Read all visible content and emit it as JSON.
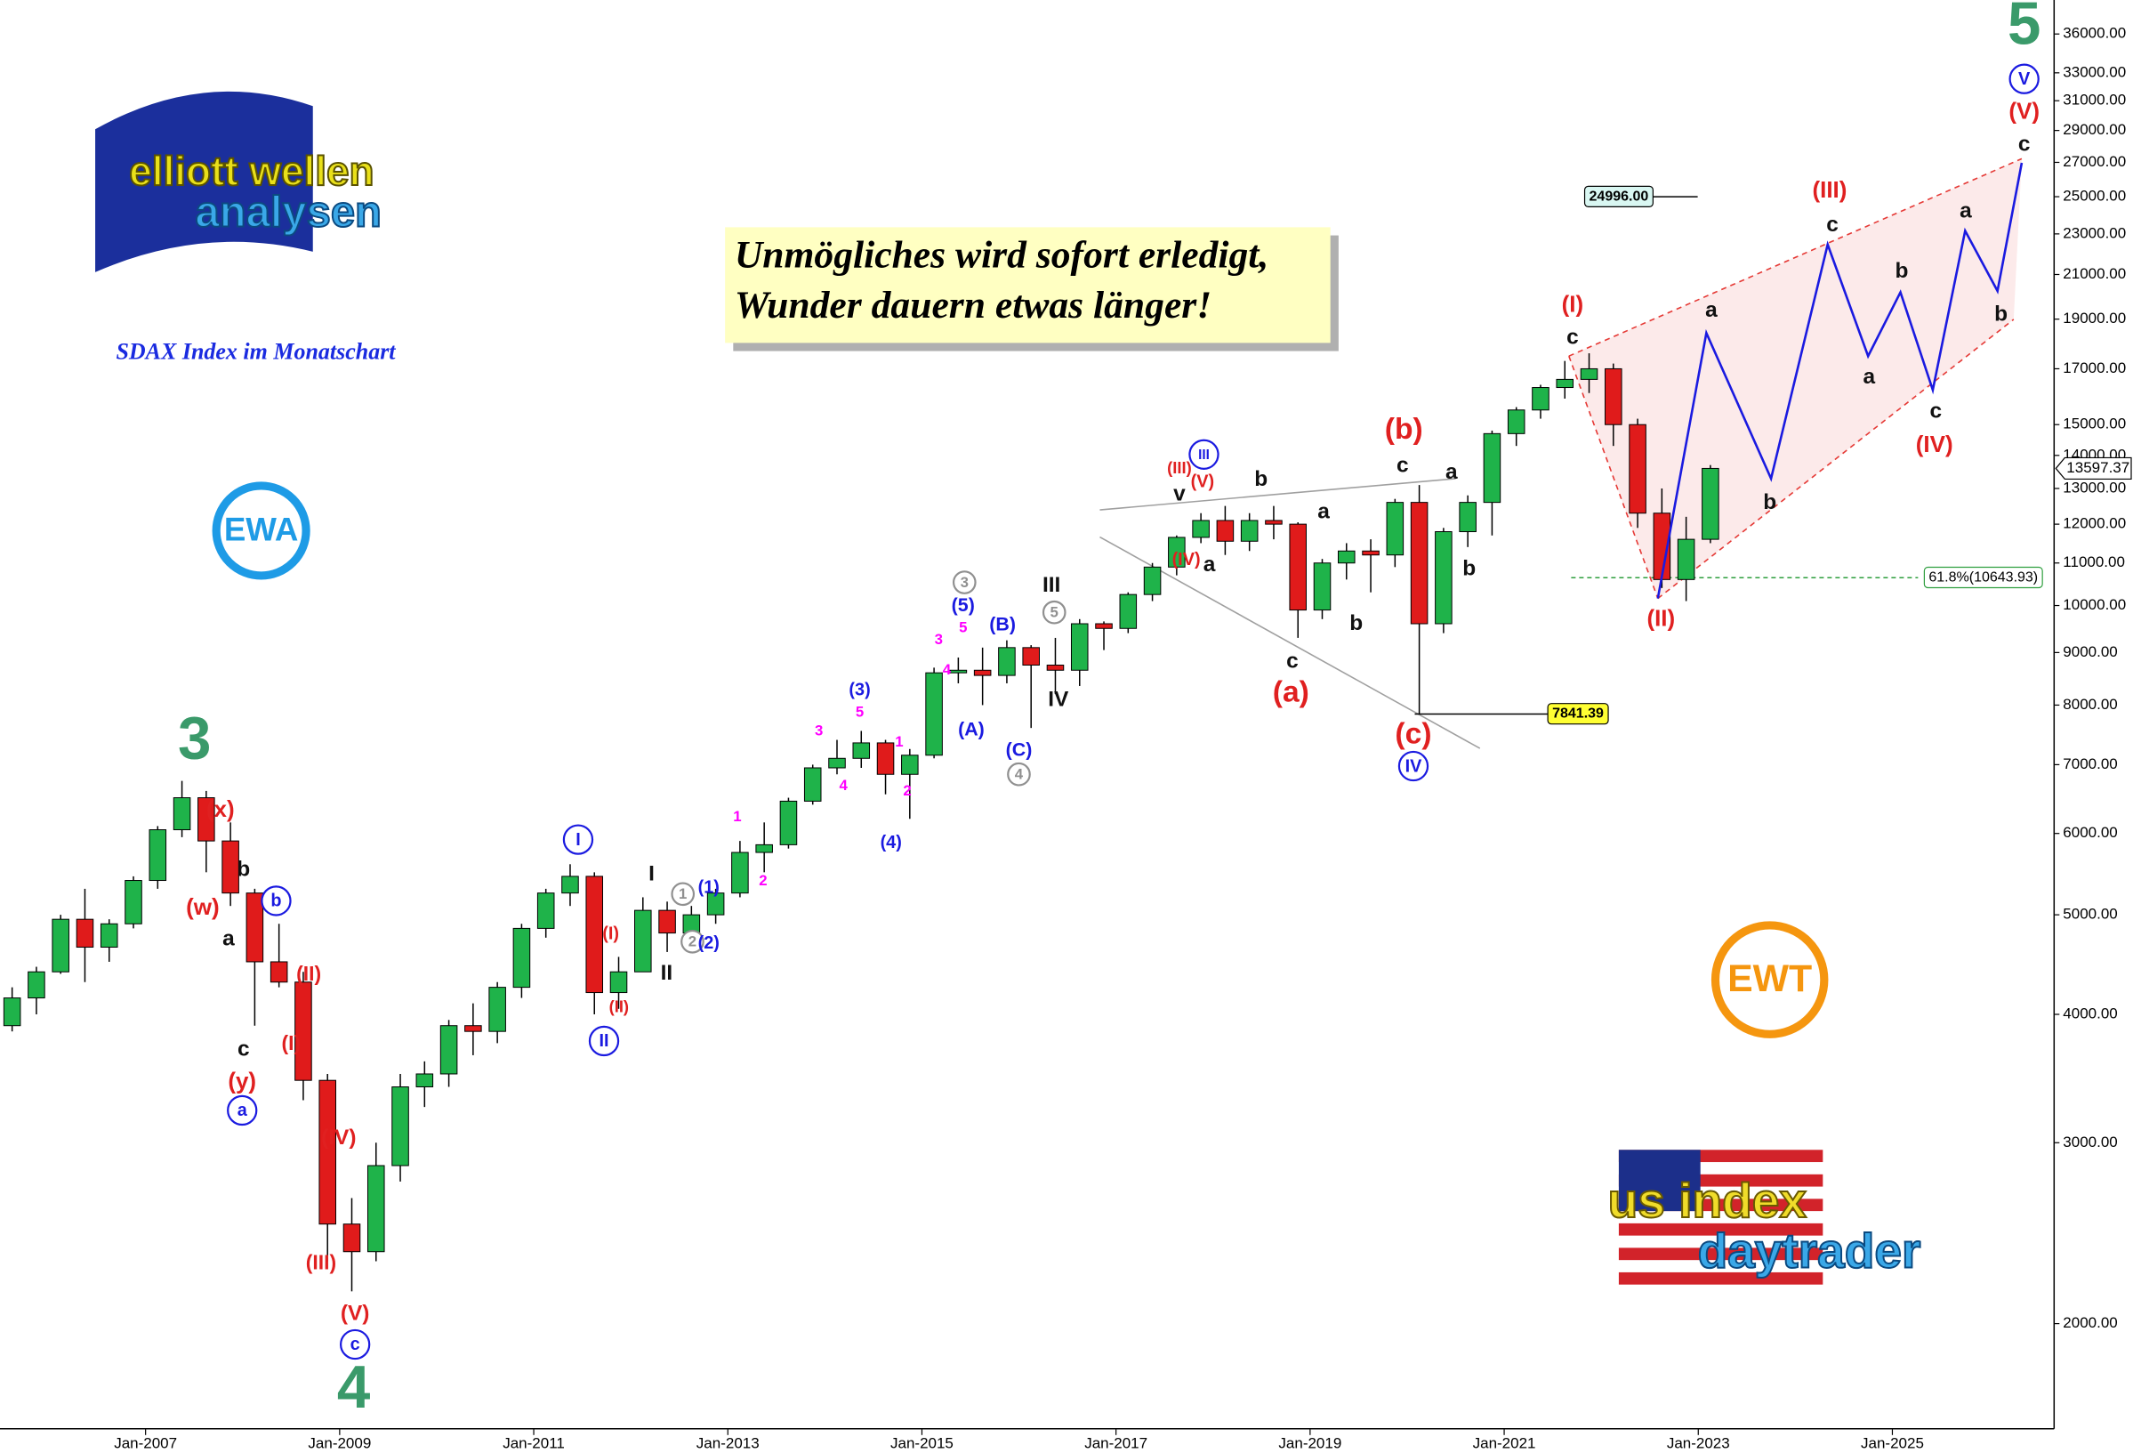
{
  "chart_data": {
    "type": "candlestick",
    "title": "SDAX Index im Monatschart",
    "headline": [
      "Unmögliches wird sofort erledigt,",
      "Wunder dauern etwas länger!"
    ],
    "log_scale": true,
    "grid": false,
    "up_color": "#1fb34a",
    "down_color": "#e01b1b",
    "xlim": [
      "2005-07",
      "2026-09"
    ],
    "xticks": [
      {
        "value": "2007-01",
        "label": "Jan-2007"
      },
      {
        "value": "2009-01",
        "label": "Jan-2009"
      },
      {
        "value": "2011-01",
        "label": "Jan-2011"
      },
      {
        "value": "2013-01",
        "label": "Jan-2013"
      },
      {
        "value": "2015-01",
        "label": "Jan-2015"
      },
      {
        "value": "2017-01",
        "label": "Jan-2017"
      },
      {
        "value": "2019-01",
        "label": "Jan-2019"
      },
      {
        "value": "2021-01",
        "label": "Jan-2021"
      },
      {
        "value": "2023-01",
        "label": "Jan-2023"
      },
      {
        "value": "2025-01",
        "label": "Jan-2025"
      }
    ],
    "ylim": [
      1580,
      38850
    ],
    "yticks": [
      {
        "value": 2000,
        "label": "2000.00"
      },
      {
        "value": 3000,
        "label": "3000.00"
      },
      {
        "value": 4000,
        "label": "4000.00"
      },
      {
        "value": 5000,
        "label": "5000.00"
      },
      {
        "value": 6000,
        "label": "6000.00"
      },
      {
        "value": 7000,
        "label": "7000.00"
      },
      {
        "value": 8000,
        "label": "8000.00"
      },
      {
        "value": 9000,
        "label": "9000.00"
      },
      {
        "value": 10000,
        "label": "10000.00"
      },
      {
        "value": 11000,
        "label": "11000.00"
      },
      {
        "value": 12000,
        "label": "12000.00"
      },
      {
        "value": 13000,
        "label": "13000.00"
      },
      {
        "value": 14000,
        "label": "14000.00"
      },
      {
        "value": 15000,
        "label": "15000.00"
      },
      {
        "value": 17000,
        "label": "17000.00"
      },
      {
        "value": 19000,
        "label": "19000.00"
      },
      {
        "value": 21000,
        "label": "21000.00"
      },
      {
        "value": 23000,
        "label": "23000.00"
      },
      {
        "value": 25000,
        "label": "25000.00"
      },
      {
        "value": 27000,
        "label": "27000.00"
      },
      {
        "value": 29000,
        "label": "29000.00"
      },
      {
        "value": 31000,
        "label": "31000.00"
      },
      {
        "value": 33000,
        "label": "33000.00"
      },
      {
        "value": 36000,
        "label": "36000.00"
      }
    ],
    "x": [
      "2005-07",
      "2005-10",
      "2006-01",
      "2006-04",
      "2006-07",
      "2006-10",
      "2007-01",
      "2007-04",
      "2007-07",
      "2007-10",
      "2008-01",
      "2008-04",
      "2008-07",
      "2008-10",
      "2009-01",
      "2009-04",
      "2009-07",
      "2009-10",
      "2010-01",
      "2010-04",
      "2010-07",
      "2010-10",
      "2011-01",
      "2011-04",
      "2011-07",
      "2011-10",
      "2012-01",
      "2012-04",
      "2012-07",
      "2012-10",
      "2013-01",
      "2013-04",
      "2013-07",
      "2013-10",
      "2014-01",
      "2014-04",
      "2014-07",
      "2014-10",
      "2015-01",
      "2015-04",
      "2015-07",
      "2015-10",
      "2016-01",
      "2016-04",
      "2016-07",
      "2016-10",
      "2017-01",
      "2017-04",
      "2017-07",
      "2017-10",
      "2018-01",
      "2018-04",
      "2018-07",
      "2018-10",
      "2019-01",
      "2019-04",
      "2019-07",
      "2019-10",
      "2020-01",
      "2020-04",
      "2020-07",
      "2020-10",
      "2021-01",
      "2021-04",
      "2021-07",
      "2021-10",
      "2022-01",
      "2022-04",
      "2022-07",
      "2022-10",
      "2023-01"
    ],
    "open": [
      3900,
      4150,
      4400,
      4950,
      4650,
      4900,
      5400,
      6050,
      6500,
      5900,
      5250,
      4500,
      4300,
      3450,
      2500,
      2350,
      2850,
      3400,
      3500,
      3900,
      3850,
      4250,
      4850,
      5250,
      5450,
      4200,
      4400,
      5050,
      4800,
      5000,
      5250,
      5750,
      5850,
      6450,
      6950,
      7100,
      7350,
      6850,
      7150,
      8600,
      8650,
      8550,
      9100,
      8750,
      8650,
      9600,
      9500,
      10250,
      10900,
      11650,
      12100,
      11550,
      12100,
      12000,
      9900,
      11000,
      11300,
      11200,
      12600,
      9600,
      11800,
      12600,
      14700,
      15500,
      16300,
      16600,
      17000,
      15000,
      12300,
      10600,
      11600
    ],
    "high": [
      4250,
      4450,
      5000,
      5300,
      4950,
      5450,
      6100,
      6750,
      6600,
      6150,
      5300,
      4900,
      4400,
      3500,
      2650,
      3000,
      3500,
      3600,
      3950,
      4100,
      4300,
      4900,
      5300,
      5600,
      5500,
      4550,
      5200,
      5150,
      5100,
      5300,
      5900,
      6150,
      6500,
      7000,
      7400,
      7550,
      7400,
      7250,
      8700,
      8900,
      9100,
      9250,
      9150,
      9300,
      9700,
      9650,
      10300,
      11000,
      11700,
      12300,
      12500,
      12300,
      12500,
      12050,
      11100,
      11500,
      11600,
      12700,
      13100,
      11900,
      12800,
      14800,
      15600,
      16400,
      17300,
      17600,
      17200,
      15200,
      13000,
      12200,
      13700
    ],
    "low": [
      3850,
      4000,
      4380,
      4300,
      4500,
      4850,
      5300,
      5950,
      5500,
      5100,
      3900,
      4250,
      3300,
      2300,
      2150,
      2300,
      2750,
      3250,
      3400,
      3650,
      3750,
      4150,
      4750,
      5100,
      4000,
      4050,
      4400,
      4600,
      4650,
      4900,
      5200,
      5500,
      5800,
      6400,
      6850,
      6950,
      6550,
      6200,
      7100,
      8400,
      8000,
      8400,
      7600,
      8200,
      8350,
      9050,
      9400,
      10100,
      10700,
      11500,
      11200,
      11300,
      11600,
      9300,
      9700,
      10600,
      10300,
      10900,
      7841.39,
      9400,
      11400,
      11700,
      14300,
      15200,
      15900,
      16100,
      14300,
      11900,
      10400,
      10100,
      11500
    ],
    "close": [
      4150,
      4400,
      4950,
      4650,
      4900,
      5400,
      6050,
      6500,
      5900,
      5250,
      4500,
      4300,
      3450,
      2500,
      2350,
      2850,
      3400,
      3500,
      3900,
      3850,
      4250,
      4850,
      5250,
      5450,
      4200,
      4400,
      5050,
      4800,
      5000,
      5250,
      5750,
      5850,
      6450,
      6950,
      7100,
      7350,
      6850,
      7150,
      8600,
      8650,
      8550,
      9100,
      8750,
      8650,
      9600,
      9500,
      10250,
      10900,
      11650,
      12100,
      11550,
      12100,
      12000,
      9900,
      11000,
      11300,
      11200,
      12600,
      9600,
      11800,
      12600,
      14700,
      15500,
      16300,
      16600,
      17000,
      15000,
      12300,
      10600,
      11600,
      13597.37
    ],
    "forecast": {
      "color": "#1a1ae0",
      "x": [
        "2022-08",
        "2023-02",
        "2023-10",
        "2024-05",
        "2024-10",
        "2025-02",
        "2025-06",
        "2025-10",
        "2026-02",
        "2026-05"
      ],
      "values": [
        10160,
        18420,
        13290,
        22460,
        17490,
        20180,
        16210,
        23160,
        20240,
        26970
      ]
    },
    "trendlines": [
      {
        "color": "#e53935",
        "dash": true,
        "x": [
          "2021-09",
          "2026-05"
        ],
        "y": [
          17490,
          27220
        ]
      },
      {
        "color": "#e53935",
        "dash": true,
        "x": [
          "2022-08",
          "2026-04"
        ],
        "y": [
          10160,
          18990
        ]
      },
      {
        "color": "#e53935",
        "dash": true,
        "x": [
          "2021-09",
          "2022-08"
        ],
        "y": [
          17490,
          10160
        ]
      },
      {
        "color": "#a0a0a0",
        "dash": false,
        "x": [
          "2016-11",
          "2020-07"
        ],
        "y": [
          12390,
          13290
        ]
      },
      {
        "color": "#a0a0a0",
        "dash": false,
        "x": [
          "2016-11",
          "2020-10"
        ],
        "y": [
          11660,
          7260
        ]
      }
    ],
    "levels": [
      {
        "value": 24996,
        "label": "24996.00",
        "color": "#000000",
        "box": "#d9f7f2"
      },
      {
        "value": 7841.39,
        "label": "7841.39",
        "color": "#000000",
        "box": "#ffff33"
      },
      {
        "value": 10643.93,
        "label": "61.8%(10643.93)",
        "color": "#2e9e3e",
        "box": "#ffffff"
      }
    ],
    "annotations": [
      {
        "text": "3",
        "color": "#3a9a6a"
      },
      {
        "text": "4",
        "color": "#3a9a6a"
      },
      {
        "text": "5",
        "color": "#3a9a6a"
      },
      {
        "text": "V",
        "color": "#1a1ae0",
        "circled": true
      },
      {
        "text": "(V)",
        "color": "#e02020"
      },
      {
        "text": "c",
        "color": "#111111"
      },
      {
        "text": "(III)",
        "color": "#e02020"
      },
      {
        "text": "c",
        "color": "#111111"
      },
      {
        "text": "a",
        "color": "#111111"
      },
      {
        "text": "b",
        "color": "#111111"
      },
      {
        "text": "b",
        "color": "#111111"
      },
      {
        "text": "a",
        "color": "#111111"
      },
      {
        "text": "c",
        "color": "#111111"
      },
      {
        "text": "(IV)",
        "color": "#e02020"
      },
      {
        "text": "a",
        "color": "#111111"
      },
      {
        "text": "b",
        "color": "#111111"
      },
      {
        "text": "(I)",
        "color": "#e02020"
      },
      {
        "text": "c",
        "color": "#111111"
      },
      {
        "text": "(II)",
        "color": "#e02020"
      },
      {
        "text": "(b)",
        "color": "#e02020"
      },
      {
        "text": "c",
        "color": "#111111"
      },
      {
        "text": "a",
        "color": "#111111"
      },
      {
        "text": "b",
        "color": "#111111"
      },
      {
        "text": "a",
        "color": "#111111"
      },
      {
        "text": "b",
        "color": "#111111"
      },
      {
        "text": "c",
        "color": "#111111"
      },
      {
        "text": "(a)",
        "color": "#e02020"
      },
      {
        "text": "(c)",
        "color": "#e02020"
      },
      {
        "text": "IV",
        "color": "#1a1ae0",
        "circled": true
      },
      {
        "text": "III",
        "color": "#1a1ae0",
        "circled": true
      },
      {
        "text": "(III)",
        "color": "#e02020"
      },
      {
        "text": "(V)",
        "color": "#e02020"
      },
      {
        "text": "v",
        "color": "#111111"
      },
      {
        "text": "b",
        "color": "#111111"
      },
      {
        "text": "(IV)",
        "color": "#e02020"
      },
      {
        "text": "a",
        "color": "#111111"
      },
      {
        "text": "III",
        "color": "#111111"
      },
      {
        "text": "5",
        "color": "#909090",
        "circled": true
      },
      {
        "text": "IV",
        "color": "#111111"
      },
      {
        "text": "(B)",
        "color": "#1a1ae0"
      },
      {
        "text": "(C)",
        "color": "#1a1ae0"
      },
      {
        "text": "4",
        "color": "#909090",
        "circled": true
      },
      {
        "text": "(A)",
        "color": "#1a1ae0"
      },
      {
        "text": "3",
        "color": "#909090",
        "circled": true
      },
      {
        "text": "(5)",
        "color": "#1a1ae0"
      },
      {
        "text": "5",
        "color": "#ff00ff"
      },
      {
        "text": "3",
        "color": "#ff00ff"
      },
      {
        "text": "4",
        "color": "#ff00ff"
      },
      {
        "text": "(3)",
        "color": "#1a1ae0"
      },
      {
        "text": "5",
        "color": "#ff00ff"
      },
      {
        "text": "3",
        "color": "#ff00ff"
      },
      {
        "text": "4",
        "color": "#ff00ff"
      },
      {
        "text": "1",
        "color": "#ff00ff"
      },
      {
        "text": "2",
        "color": "#ff00ff"
      },
      {
        "text": "(4)",
        "color": "#1a1ae0"
      },
      {
        "text": "1",
        "color": "#ff00ff"
      },
      {
        "text": "2",
        "color": "#ff00ff"
      },
      {
        "text": "I",
        "color": "#1a1ae0",
        "circled": true
      },
      {
        "text": "I",
        "color": "#111111"
      },
      {
        "text": "1",
        "color": "#909090",
        "circled": true
      },
      {
        "text": "(1)",
        "color": "#1a1ae0"
      },
      {
        "text": "2",
        "color": "#909090",
        "circled": true
      },
      {
        "text": "(2)",
        "color": "#1a1ae0"
      },
      {
        "text": "II",
        "color": "#111111"
      },
      {
        "text": "(I)",
        "color": "#e02020"
      },
      {
        "text": "(II)",
        "color": "#e02020"
      },
      {
        "text": "II",
        "color": "#1a1ae0",
        "circled": true
      },
      {
        "text": "(x)",
        "color": "#e02020"
      },
      {
        "text": "b",
        "color": "#111111"
      },
      {
        "text": "b",
        "color": "#1a1ae0",
        "circled": true
      },
      {
        "text": "(w)",
        "color": "#e02020"
      },
      {
        "text": "a",
        "color": "#111111"
      },
      {
        "text": "(II)",
        "color": "#e02020"
      },
      {
        "text": "(I)",
        "color": "#e02020"
      },
      {
        "text": "c",
        "color": "#111111"
      },
      {
        "text": "(y)",
        "color": "#e02020"
      },
      {
        "text": "a",
        "color": "#1a1ae0",
        "circled": true
      },
      {
        "text": "(IV)",
        "color": "#e02020"
      },
      {
        "text": "(III)",
        "color": "#e02020"
      },
      {
        "text": "(V)",
        "color": "#e02020"
      },
      {
        "text": "c",
        "color": "#1a1ae0",
        "circled": true
      }
    ]
  },
  "logos": {
    "ewa_top": "elliott wellen",
    "ewa_bottom": "analysen",
    "ewa_badge": "EWA",
    "ewt_badge": "EWT",
    "us_top": "us index",
    "us_bottom": "daytrader"
  }
}
